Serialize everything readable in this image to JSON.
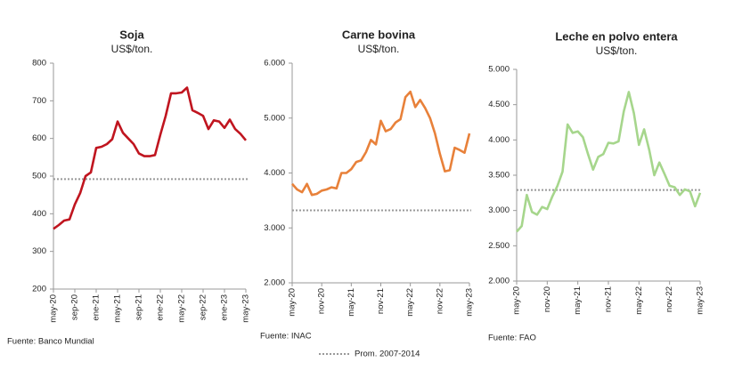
{
  "chart_data": [
    {
      "type": "line",
      "title": "Soja",
      "subtitle": "US$/ton.",
      "source": "Fuente: Banco Mundial",
      "categories": [
        "may-20",
        null,
        null,
        null,
        "sep-20",
        null,
        null,
        null,
        "ene-21",
        null,
        null,
        null,
        "may-21",
        null,
        null,
        null,
        "sep-21",
        null,
        null,
        null,
        "ene-22",
        null,
        null,
        null,
        "may-22",
        null,
        null,
        null,
        "sep-22",
        null,
        null,
        null,
        "ene-23",
        null,
        null,
        null,
        "may-23"
      ],
      "series": [
        {
          "name": "Soja",
          "color": "#c0151f",
          "values": [
            360,
            370,
            382,
            385,
            425,
            455,
            500,
            510,
            575,
            578,
            585,
            598,
            645,
            615,
            600,
            585,
            560,
            553,
            553,
            556,
            610,
            660,
            720,
            720,
            722,
            735,
            675,
            668,
            660,
            625,
            648,
            645,
            628,
            650,
            625,
            612,
            595
          ]
        }
      ],
      "reference_value": 492,
      "ylim": [
        200,
        800
      ],
      "yticks": [
        200,
        300,
        400,
        500,
        600,
        700,
        800
      ]
    },
    {
      "type": "line",
      "title": "Carne bovina",
      "subtitle": "US$/ton.",
      "source": "Fuente: INAC",
      "categories": [
        "may-20",
        null,
        null,
        null,
        null,
        null,
        "nov-20",
        null,
        null,
        null,
        null,
        null,
        "may-21",
        null,
        null,
        null,
        null,
        null,
        "nov-21",
        null,
        null,
        null,
        null,
        null,
        "may-22",
        null,
        null,
        null,
        null,
        null,
        "nov-22",
        null,
        null,
        null,
        null,
        null,
        "may-23"
      ],
      "series": [
        {
          "name": "Carne bovina",
          "color": "#e8813a",
          "values": [
            3800,
            3700,
            3650,
            3800,
            3600,
            3620,
            3680,
            3700,
            3740,
            3720,
            4000,
            4000,
            4070,
            4200,
            4230,
            4380,
            4600,
            4520,
            4950,
            4760,
            4800,
            4920,
            4980,
            5380,
            5480,
            5200,
            5330,
            5180,
            5000,
            4720,
            4350,
            4030,
            4050,
            4460,
            4420,
            4370,
            4720
          ]
        }
      ],
      "reference_value": 3320,
      "ylim": [
        2000,
        6000
      ],
      "yticks": [
        {
          "value": 2000,
          "label": "2.000"
        },
        {
          "value": 3000,
          "label": "3.000"
        },
        {
          "value": 4000,
          "label": "4.000"
        },
        {
          "value": 5000,
          "label": "5.000"
        },
        {
          "value": 6000,
          "label": "6.000"
        }
      ]
    },
    {
      "type": "line",
      "title": "Leche en polvo entera",
      "subtitle": "US$/ton.",
      "source": "Fuente: FAO",
      "categories": [
        "may-20",
        null,
        null,
        null,
        null,
        null,
        "nov-20",
        null,
        null,
        null,
        null,
        null,
        "may-21",
        null,
        null,
        null,
        null,
        null,
        "nov-21",
        null,
        null,
        null,
        null,
        null,
        "may-22",
        null,
        null,
        null,
        null,
        null,
        "nov-22",
        null,
        null,
        null,
        null,
        null,
        "may-23"
      ],
      "series": [
        {
          "name": "Leche en polvo entera",
          "color": "#a6d68c",
          "values": [
            2700,
            2780,
            3220,
            2980,
            2940,
            3050,
            3020,
            3200,
            3350,
            3550,
            4220,
            4100,
            4120,
            4040,
            3800,
            3580,
            3760,
            3800,
            3960,
            3950,
            3980,
            4400,
            4680,
            4380,
            3930,
            4150,
            3860,
            3500,
            3680,
            3520,
            3350,
            3330,
            3220,
            3300,
            3270,
            3060,
            3250
          ]
        }
      ],
      "reference_value": 3290,
      "ylim": [
        2000,
        5000
      ],
      "yticks": [
        {
          "value": 2000,
          "label": "2.000"
        },
        {
          "value": 2500,
          "label": "2.500"
        },
        {
          "value": 3000,
          "label": "3.000"
        },
        {
          "value": 3500,
          "label": "3.500"
        },
        {
          "value": 4000,
          "label": "4.000"
        },
        {
          "value": 4500,
          "label": "4.500"
        },
        {
          "value": 5000,
          "label": "5.000"
        }
      ]
    }
  ],
  "legend": {
    "label": "Prom. 2007-2014",
    "color": "#999999"
  }
}
